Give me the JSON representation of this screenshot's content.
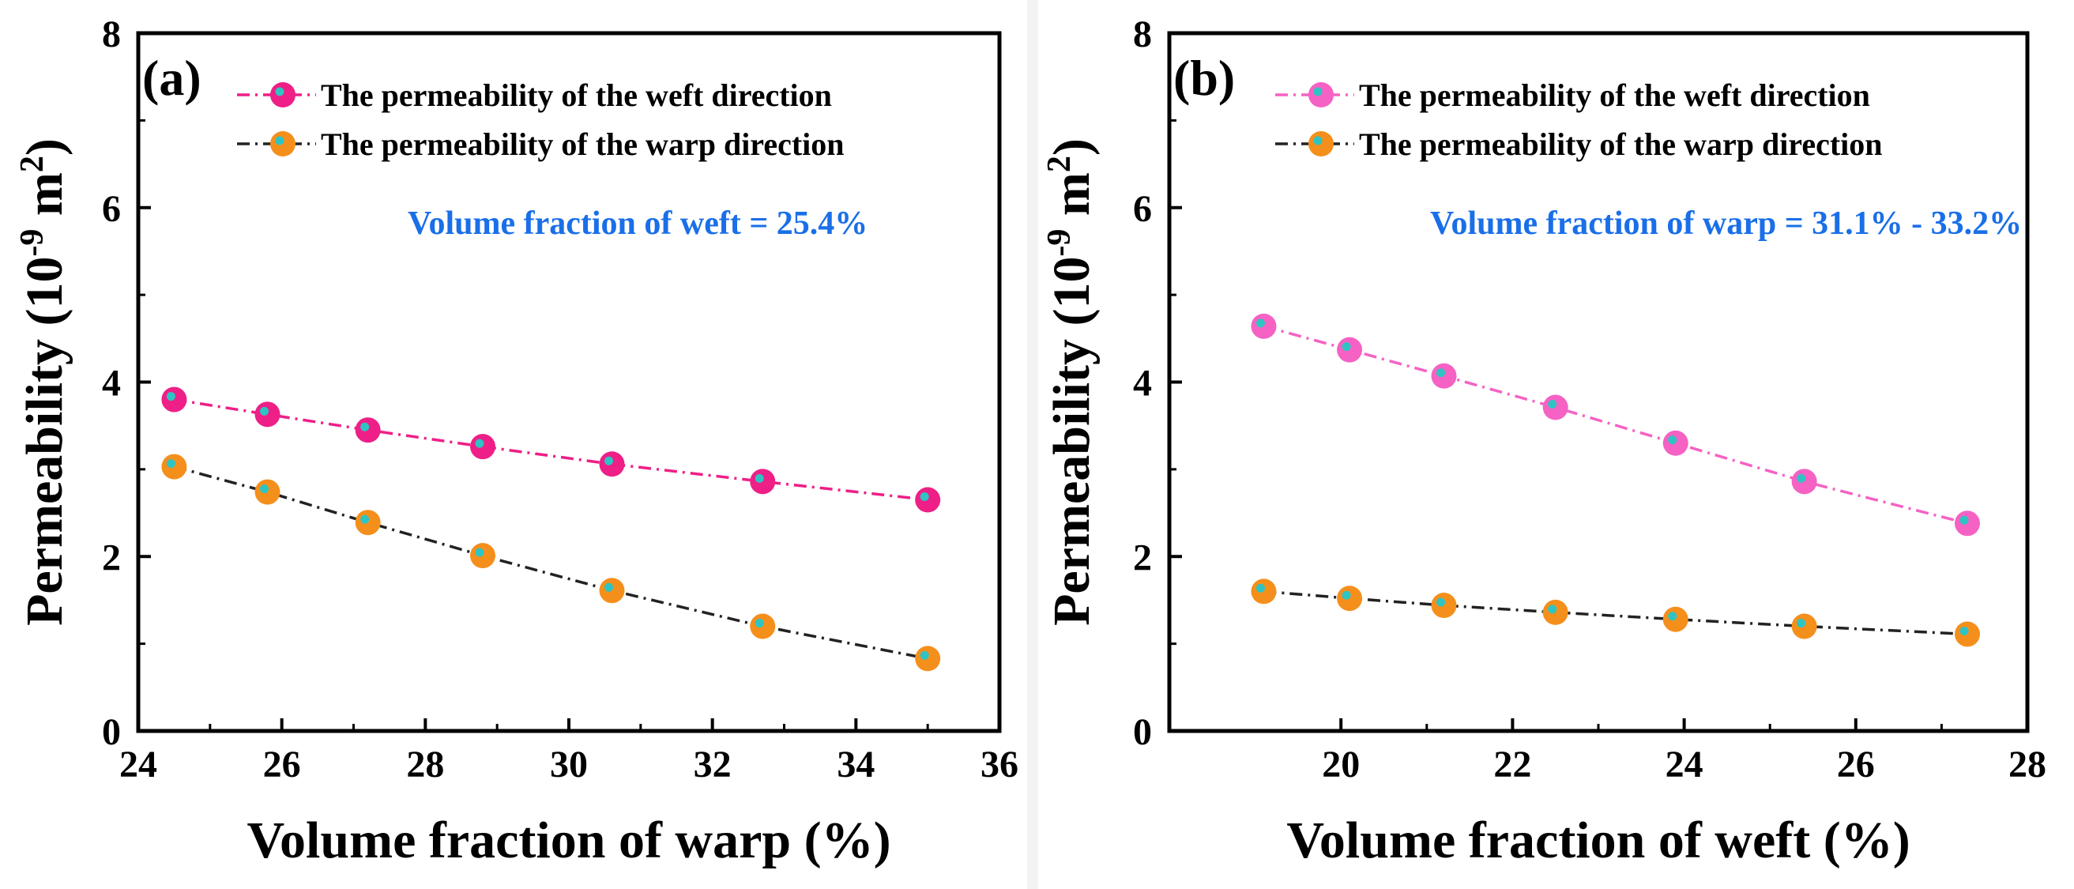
{
  "chart_data": [
    {
      "type": "line",
      "panel_label": "(a)",
      "xlabel": "Volume fraction of warp (%)",
      "ylabel": "Permeability (10^-9 m^2)",
      "ylabel_parts": {
        "main": "Permeability (10",
        "exp1": "-9",
        "mid": " m",
        "exp2": "2",
        "end": ")"
      },
      "xlim": [
        24,
        36
      ],
      "ylim": [
        0,
        8
      ],
      "xticks": [
        24,
        26,
        28,
        30,
        32,
        34,
        36
      ],
      "yticks": [
        0,
        2,
        4,
        6,
        8
      ],
      "x": [
        24.5,
        25.8,
        27.2,
        28.8,
        30.6,
        32.7,
        35.0
      ],
      "series": [
        {
          "name": "The permeability of the weft direction",
          "values": [
            3.8,
            3.63,
            3.45,
            3.26,
            3.06,
            2.86,
            2.65
          ],
          "color": "#ee1f87",
          "line": "dashdot-pink"
        },
        {
          "name": "The permeability of the warp direction",
          "values": [
            3.03,
            2.74,
            2.39,
            2.01,
            1.61,
            1.2,
            0.83
          ],
          "color": "#f58f1c",
          "line": "dashdot-black"
        }
      ],
      "annotation": "Volume fraction of weft = 25.4%",
      "annotation_color": "#1a6fe8",
      "legend_position": "top-right",
      "grid": false
    },
    {
      "type": "line",
      "panel_label": "(b)",
      "xlabel": "Volume fraction of weft (%)",
      "ylabel": "Permeability (10^-9 m^2)",
      "ylabel_parts": {
        "main": "Permeability (10",
        "exp1": "-9",
        "mid": " m",
        "exp2": "2",
        "end": ")"
      },
      "xlim": [
        18,
        28
      ],
      "ylim": [
        0,
        8
      ],
      "xticks": [
        20,
        22,
        24,
        26,
        28
      ],
      "yticks": [
        0,
        2,
        4,
        6,
        8
      ],
      "x": [
        19.1,
        20.1,
        21.2,
        22.5,
        23.9,
        25.4,
        27.3
      ],
      "series": [
        {
          "name": "The permeability of the weft direction",
          "values": [
            4.64,
            4.37,
            4.07,
            3.71,
            3.3,
            2.86,
            2.38
          ],
          "color": "#f562c4",
          "line": "dashdot-pink"
        },
        {
          "name": "The permeability of the warp direction",
          "values": [
            1.6,
            1.52,
            1.44,
            1.36,
            1.28,
            1.2,
            1.11
          ],
          "color": "#f58f1c",
          "line": "dashdot-black"
        }
      ],
      "annotation": "Volume fraction of warp = 31.1% - 33.2%",
      "annotation_color": "#1a6fe8",
      "legend_position": "top-right",
      "grid": false
    }
  ]
}
